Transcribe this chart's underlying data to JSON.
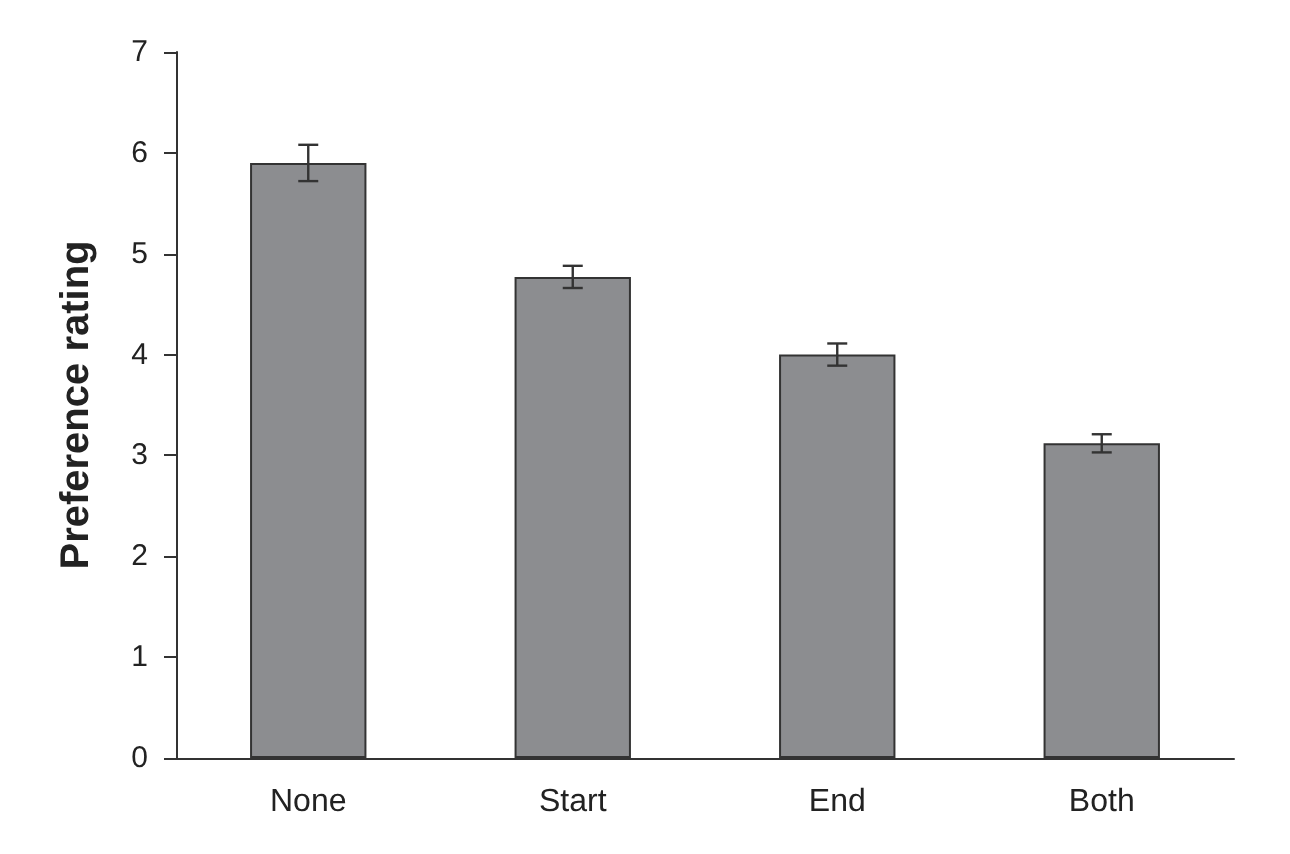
{
  "chart_data": {
    "type": "bar",
    "ylabel": "Preference rating",
    "categories": [
      "None",
      "Start",
      "End",
      "Both"
    ],
    "values": [
      5.9,
      4.77,
      4.0,
      3.12
    ],
    "errors": [
      0.18,
      0.11,
      0.11,
      0.09
    ],
    "color": "#8c8d90",
    "ylim": [
      0,
      7
    ],
    "yticks": [
      0,
      1,
      2,
      3,
      4,
      5,
      6,
      7
    ],
    "grid": false
  }
}
